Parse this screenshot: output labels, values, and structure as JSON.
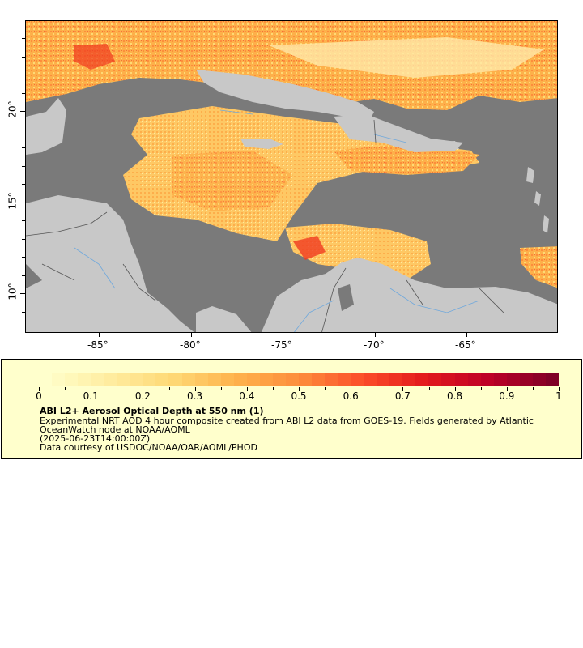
{
  "map": {
    "lat_labels": [
      "20°",
      "15°",
      "10°"
    ],
    "lon_labels": [
      "-85°",
      "-80°",
      "-75°",
      "-70°",
      "-65°"
    ],
    "colors": {
      "ocean": "#7a7a7a",
      "land": "#c8c8c8",
      "aerosol_low": "#ffeda0",
      "aerosol_mid": "#feb24c",
      "aerosol_high": "#f03b20"
    }
  },
  "legend": {
    "tick_labels": [
      "0",
      "0.1",
      "0.2",
      "0.3",
      "0.4",
      "0.5",
      "0.6",
      "0.7",
      "0.8",
      "0.9",
      "1"
    ],
    "title": "ABI L2+ Aerosol Optical Depth at 550 nm (1)",
    "lines": [
      "Experimental NRT AOD 4 hour composite created from ABI L2 data from GOES-19. Fields generated by Atlantic",
      "OceanWatch node at NOAA/AOML",
      "(2025-06-23T14:00:00Z)",
      "Data courtesy of USDOC/NOAA/OAR/AOML/PHOD"
    ]
  }
}
